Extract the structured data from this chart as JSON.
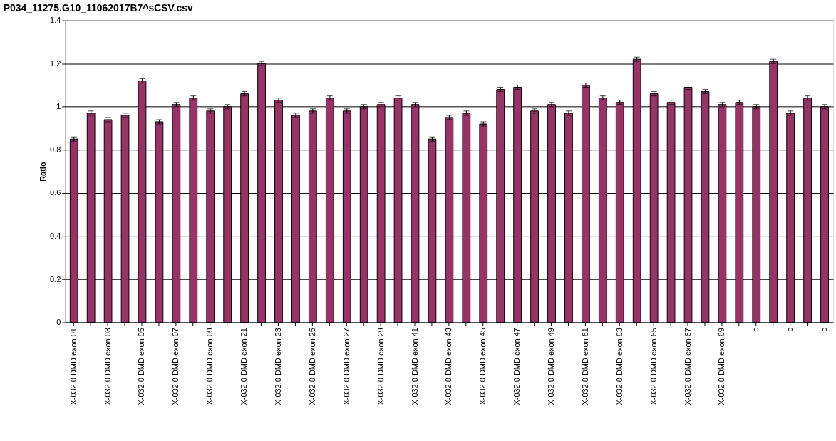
{
  "chart_data": {
    "type": "bar",
    "title": "P034_11275.G10_11062017B7^sCSV.csv",
    "ylabel": "Ratio",
    "categories": [
      "X-032.0 DMD exon 01",
      null,
      "X-032.0 DMD exon 03",
      null,
      "X-032.0 DMD exon 05",
      null,
      "X-032.0 DMD exon 07",
      null,
      "X-032.0 DMD exon 09",
      null,
      "X-032.0 DMD exon 21",
      null,
      "X-032.0 DMD exon 23",
      null,
      "X-032.0 DMD exon 25",
      null,
      "X-032.0 DMD exon 27",
      null,
      "X-032.0 DMD exon 29",
      null,
      "X-032.0 DMD exon 41",
      null,
      "X-032.0 DMD exon 43",
      null,
      "X-032.0 DMD exon 45",
      null,
      "X-032.0 DMD exon 47",
      null,
      "X-032.0 DMD exon 49",
      null,
      "X-032.0 DMD exon 61",
      null,
      "X-032.0 DMD exon 63",
      null,
      "X-032.0 DMD exon 65",
      null,
      "X-032.0 DMD exon 67",
      null,
      "X-032.0 DMD exon 69",
      null,
      "c",
      null,
      "c",
      null,
      "c"
    ],
    "values": [
      0.85,
      0.97,
      0.94,
      0.96,
      1.12,
      0.93,
      1.01,
      1.04,
      0.98,
      1.0,
      1.06,
      1.2,
      1.03,
      0.96,
      0.98,
      1.04,
      0.98,
      1.0,
      1.01,
      1.04,
      1.01,
      0.85,
      0.95,
      0.97,
      0.92,
      1.08,
      1.09,
      0.98,
      1.01,
      0.97,
      1.1,
      1.04,
      1.02,
      1.22,
      1.06,
      1.02,
      1.09,
      1.07,
      1.01,
      1.02,
      1.0,
      1.21,
      0.97,
      1.04,
      1.0
    ],
    "errors": [
      0.01,
      0.01,
      0.01,
      0.01,
      0.01,
      0.01,
      0.01,
      0.01,
      0.01,
      0.01,
      0.01,
      0.01,
      0.01,
      0.01,
      0.01,
      0.01,
      0.01,
      0.01,
      0.01,
      0.01,
      0.01,
      0.01,
      0.01,
      0.01,
      0.01,
      0.01,
      0.01,
      0.01,
      0.01,
      0.01,
      0.01,
      0.01,
      0.01,
      0.01,
      0.01,
      0.01,
      0.01,
      0.01,
      0.01,
      0.01,
      0.01,
      0.01,
      0.01,
      0.01,
      0.01
    ],
    "color": "#993366",
    "ylim": [
      0,
      1.4
    ],
    "yticks": [
      0,
      0.2,
      0.4,
      0.6,
      0.8,
      1,
      1.2,
      1.4
    ],
    "grid": "y"
  }
}
